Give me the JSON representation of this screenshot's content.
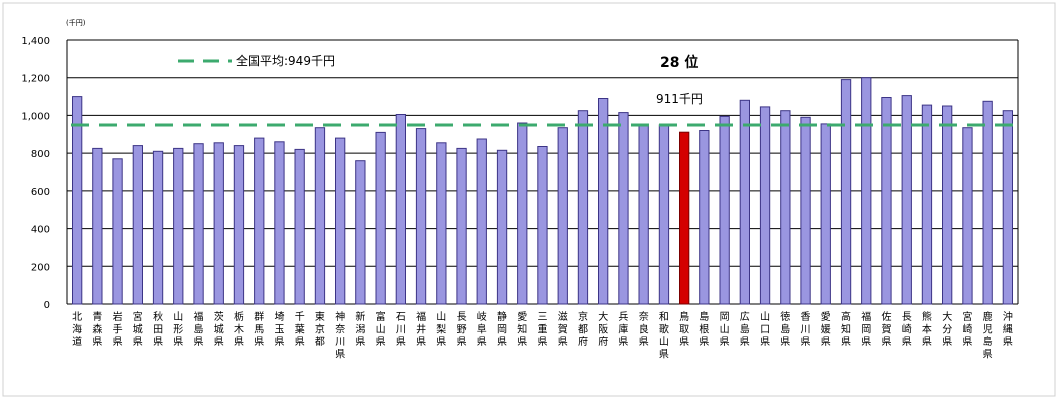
{
  "chart_data": {
    "type": "bar",
    "unit_label": "(千円)",
    "ylim": [
      0,
      1400
    ],
    "yticks": [
      "0",
      "200",
      "400",
      "600",
      "800",
      "1,000",
      "1,200",
      "1,400"
    ],
    "categories": [
      "北海道",
      "青森県",
      "岩手県",
      "宮城県",
      "秋田県",
      "山形県",
      "福島県",
      "茨城県",
      "栃木県",
      "群馬県",
      "埼玉県",
      "千葉県",
      "東京都",
      "神奈川県",
      "新潟県",
      "富山県",
      "石川県",
      "福井県",
      "山梨県",
      "長野県",
      "岐阜県",
      "静岡県",
      "愛知県",
      "三重県",
      "滋賀県",
      "京都府",
      "大阪府",
      "兵庫県",
      "奈良県",
      "和歌山県",
      "鳥取県",
      "島根県",
      "岡山県",
      "広島県",
      "山口県",
      "徳島県",
      "香川県",
      "愛媛県",
      "高知県",
      "福岡県",
      "佐賀県",
      "長崎県",
      "熊本県",
      "大分県",
      "宮崎県",
      "鹿児島県",
      "沖縄県"
    ],
    "values": [
      1100,
      825,
      770,
      840,
      810,
      825,
      850,
      855,
      840,
      880,
      860,
      820,
      935,
      880,
      760,
      910,
      1005,
      930,
      855,
      825,
      875,
      815,
      960,
      835,
      935,
      1025,
      1090,
      1015,
      950,
      950,
      911,
      920,
      995,
      1080,
      1045,
      1025,
      990,
      955,
      1190,
      1200,
      1095,
      1105,
      1055,
      1050,
      935,
      1075,
      1025
    ],
    "highlight_index": 30,
    "reference_line": {
      "value": 949,
      "legend_label": "全国平均:949千円"
    },
    "annotations": {
      "rank": "28 位",
      "value_label": "911千円"
    },
    "colors": {
      "bar": "#9a96e0",
      "bar_stroke": "#3c3486",
      "highlight": "#d40000",
      "highlight_stroke": "#7a0000",
      "reference": "#3caa6e",
      "grid": "#000000"
    }
  }
}
